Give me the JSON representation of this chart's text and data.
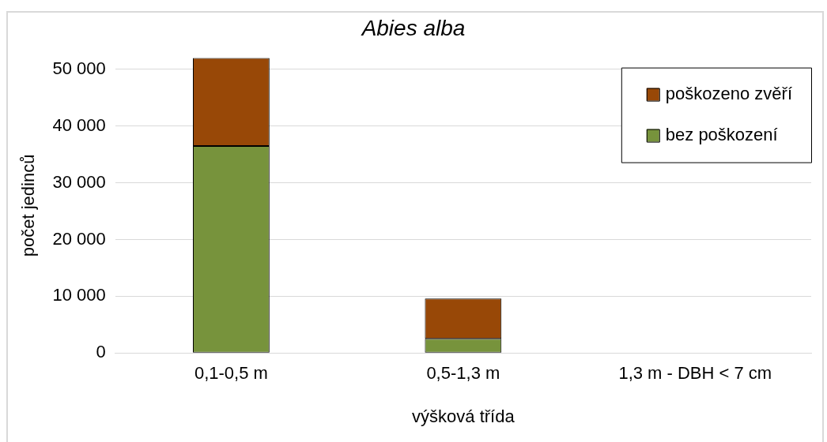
{
  "chart_data": {
    "type": "bar",
    "title": "Abies alba",
    "xlabel": "výšková třída",
    "ylabel": "počet jedinců",
    "categories": [
      "0,1-0,5 m",
      "0,5-1,3 m",
      "1,3 m - DBH < 7 cm"
    ],
    "stacked": true,
    "series": [
      {
        "name": "bez poškození",
        "color": "#77933c",
        "values": [
          36500,
          2500,
          0
        ]
      },
      {
        "name": "poškozeno zvěří",
        "color": "#984807",
        "values": [
          15500,
          7100,
          0
        ]
      }
    ],
    "ylim": [
      0,
      52000
    ],
    "yticks": [
      {
        "value": 0,
        "label": "0"
      },
      {
        "value": 10000,
        "label": "10 000"
      },
      {
        "value": 20000,
        "label": "20 000"
      },
      {
        "value": 30000,
        "label": "30 000"
      },
      {
        "value": 40000,
        "label": "40 000"
      },
      {
        "value": 50000,
        "label": "50 000"
      }
    ],
    "grid": "y",
    "legend": "top right"
  }
}
